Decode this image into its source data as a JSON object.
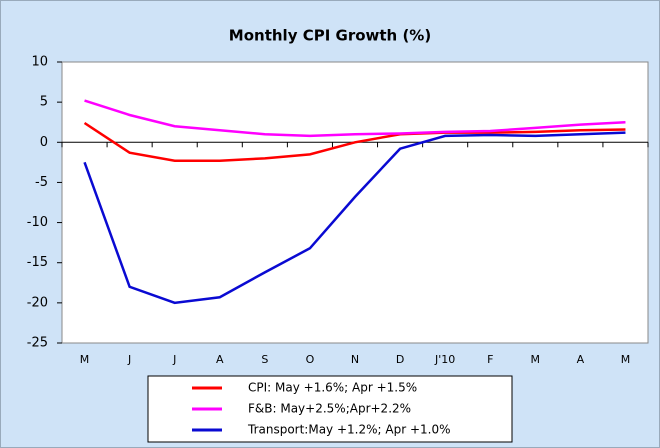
{
  "chart_data": {
    "type": "line",
    "title": "Monthly CPI Growth (%)",
    "categories": [
      "M",
      "J",
      "J",
      "A",
      "S",
      "O",
      "N",
      "D",
      "J'10",
      "F",
      "M",
      "A",
      "M"
    ],
    "series": [
      {
        "name": "CPI: May +1.6%; Apr +1.5%",
        "color": "#ff0000",
        "values": [
          2.4,
          -1.3,
          -2.3,
          -2.3,
          -2.0,
          -1.5,
          0.0,
          1.0,
          1.2,
          1.2,
          1.3,
          1.5,
          1.6
        ]
      },
      {
        "name": "F&B: May+2.5%;Apr+2.2%",
        "color": "#ff00ff",
        "values": [
          5.2,
          3.4,
          2.0,
          1.5,
          1.0,
          0.8,
          1.0,
          1.1,
          1.3,
          1.4,
          1.8,
          2.2,
          2.5
        ]
      },
      {
        "name": "Transport:May +1.2%; Apr +1.0%",
        "color": "#0a0ad2",
        "values": [
          -2.5,
          -18.0,
          -20.0,
          -19.3,
          -16.2,
          -13.2,
          -6.8,
          -0.8,
          0.8,
          0.9,
          0.8,
          1.0,
          1.2
        ]
      }
    ],
    "ylim": [
      -25,
      10
    ],
    "yticks": [
      -25,
      -20,
      -15,
      -10,
      -5,
      0,
      5,
      10
    ],
    "legend": "bottom"
  }
}
